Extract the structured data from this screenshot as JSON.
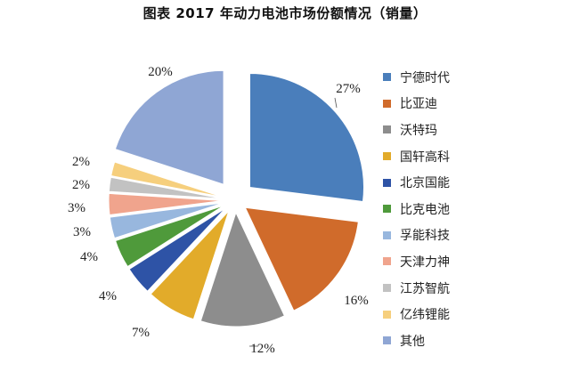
{
  "chart_data": {
    "type": "pie",
    "title": "图表  2017 年动力电池市场份额情况（销量）",
    "slices": [
      {
        "name": "宁德时代",
        "value": 27,
        "label": "27%",
        "color": "#4a7ebb"
      },
      {
        "name": "比亚迪",
        "value": 16,
        "label": "16%",
        "color": "#d06b2b"
      },
      {
        "name": "沃特玛",
        "value": 12,
        "label": "12%",
        "color": "#8d8d8d"
      },
      {
        "name": "国轩高科",
        "value": 7,
        "label": "7%",
        "color": "#e2ab2a"
      },
      {
        "name": "北京国能",
        "value": 4,
        "label": "4%",
        "color": "#2e53a6"
      },
      {
        "name": "比克电池",
        "value": 4,
        "label": "4%",
        "color": "#4f9a3b"
      },
      {
        "name": "孚能科技",
        "value": 3,
        "label": "3%",
        "color": "#98b7de"
      },
      {
        "name": "天津力神",
        "value": 3,
        "label": "3%",
        "color": "#f0a48d"
      },
      {
        "name": "江苏智航",
        "value": 2,
        "label": "2%",
        "color": "#c2c2c2"
      },
      {
        "name": "亿纬锂能",
        "value": 2,
        "label": "2%",
        "color": "#f6cf7d"
      },
      {
        "name": "其他",
        "value": 20,
        "label": "20%",
        "color": "#8fa6d4"
      }
    ],
    "legend_position": "right",
    "exploded": true
  }
}
